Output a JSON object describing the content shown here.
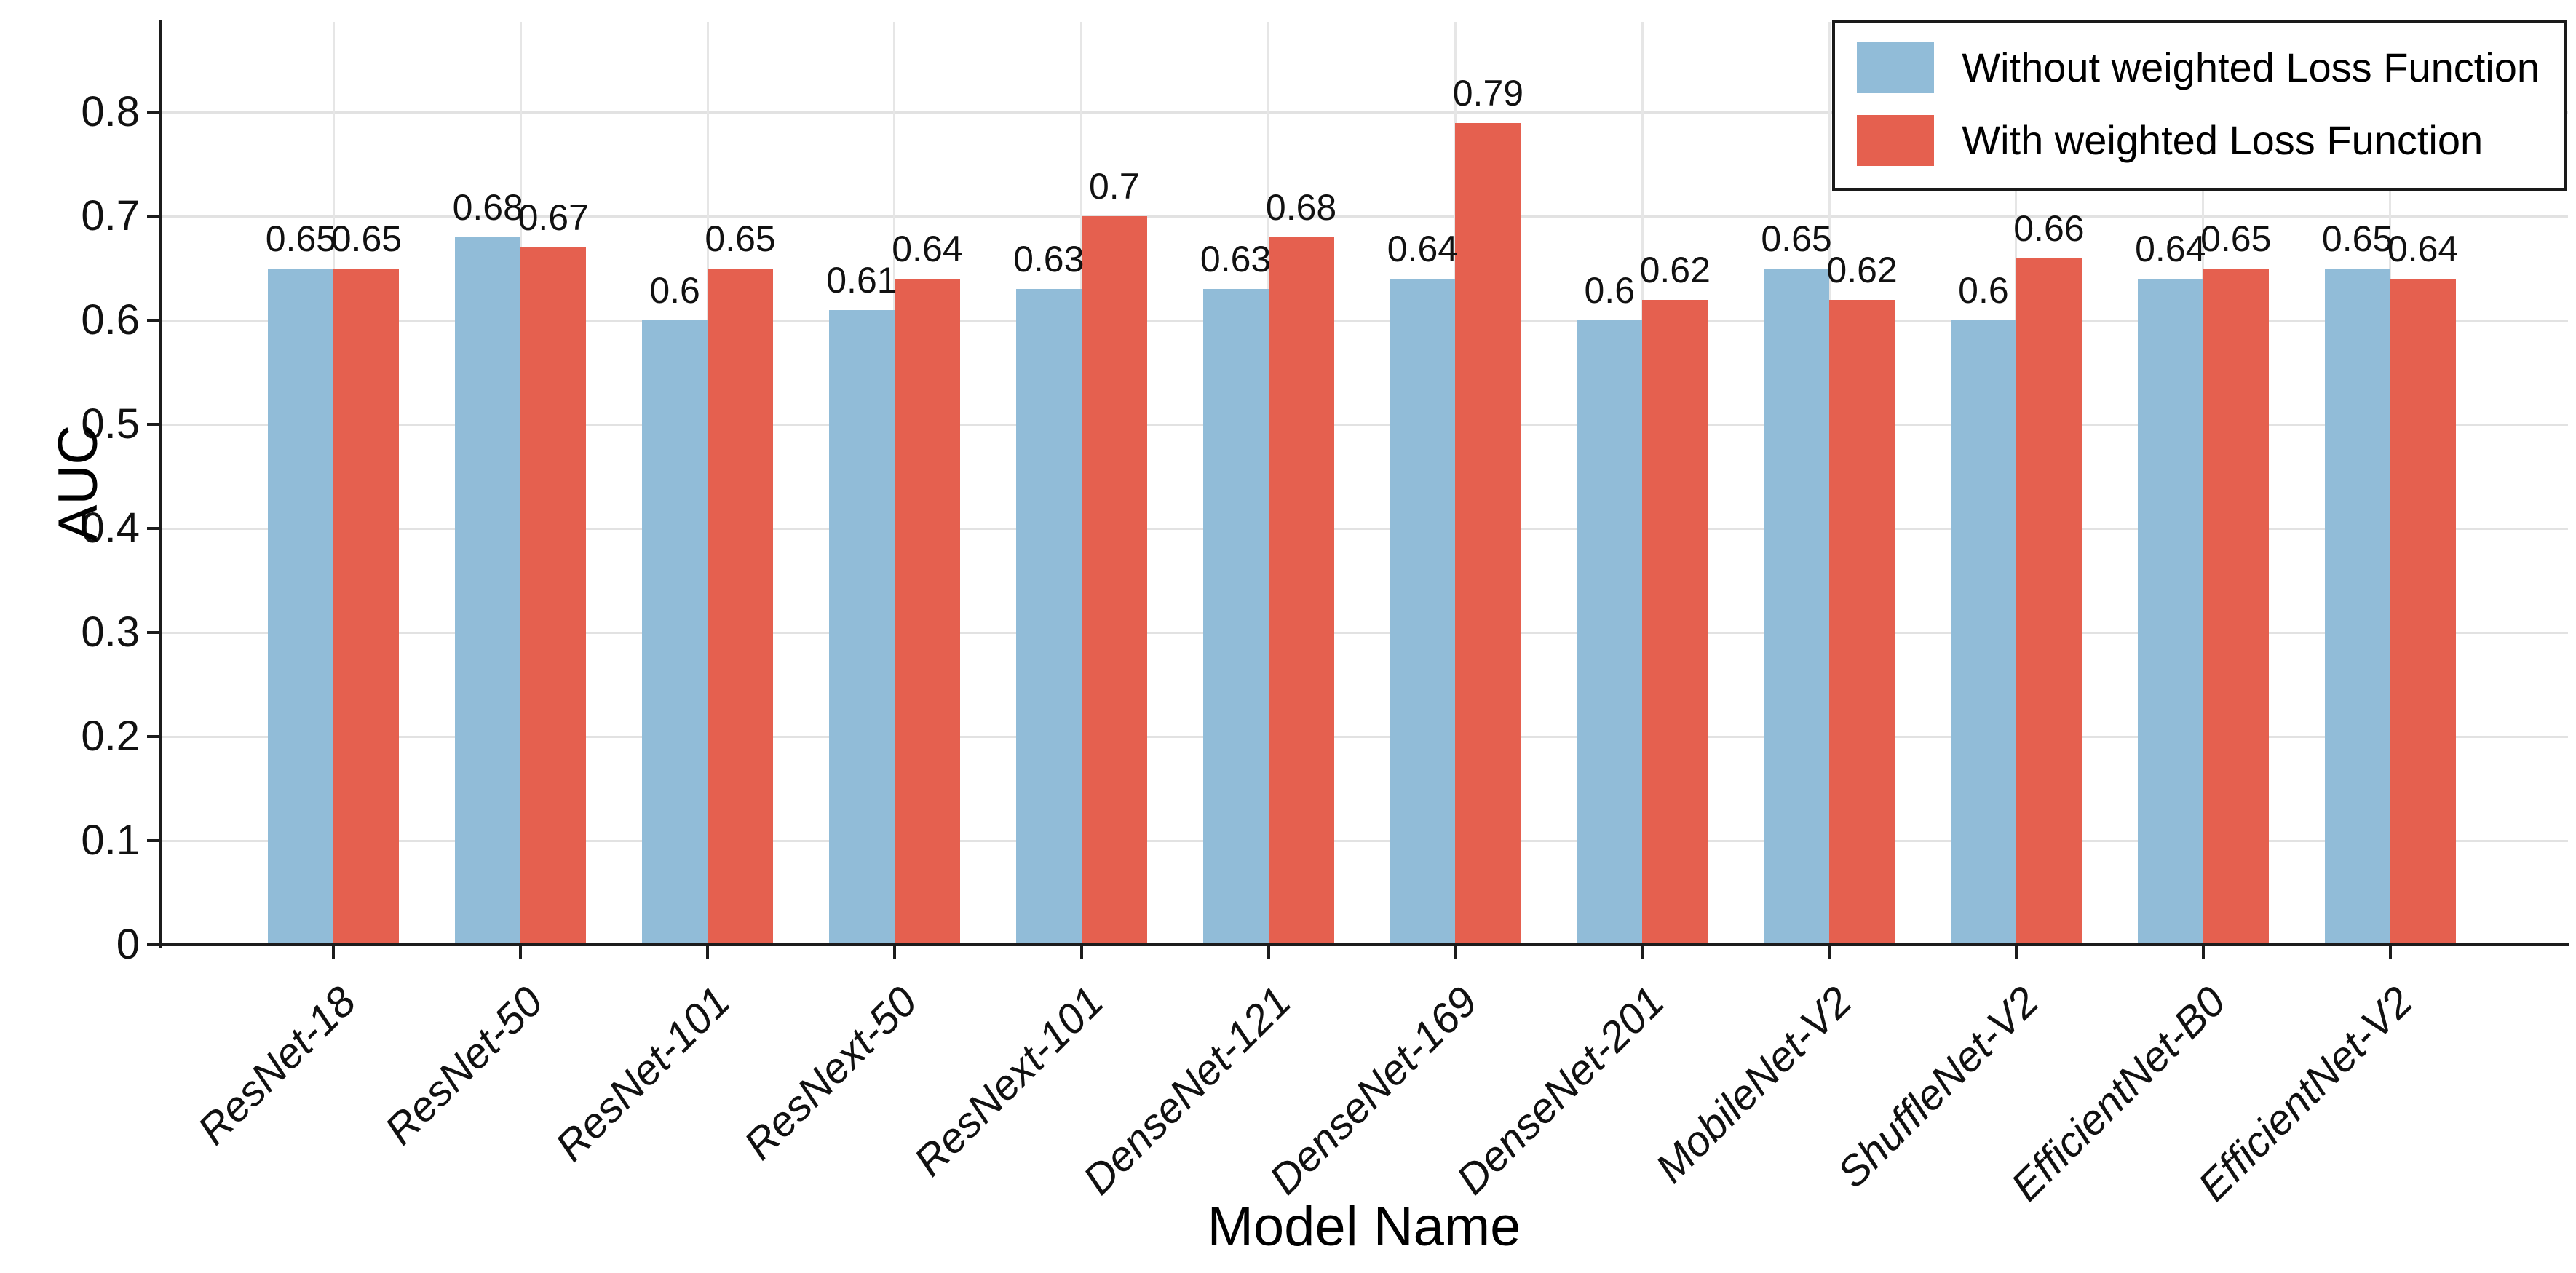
{
  "chart_data": {
    "type": "bar",
    "title": "",
    "xlabel": "Model Name",
    "ylabel": "AUC",
    "categories": [
      "ResNet-18",
      "ResNet-50",
      "ResNet-101",
      "ResNext-50",
      "ResNext-101",
      "DenseNet-121",
      "DenseNet-169",
      "DenseNet-201",
      "MobileNet-V2",
      "ShuffleNet-V2",
      "EfficientNet-B0",
      "EfficientNet-V2"
    ],
    "series": [
      {
        "name": "Without weighted Loss Function",
        "color": "#91BCD8",
        "values": [
          0.65,
          0.68,
          0.6,
          0.61,
          0.63,
          0.63,
          0.64,
          0.6,
          0.65,
          0.6,
          0.64,
          0.65
        ]
      },
      {
        "name": "With weighted Loss Function",
        "color": "#E5604F",
        "values": [
          0.65,
          0.67,
          0.65,
          0.64,
          0.7,
          0.68,
          0.79,
          0.62,
          0.62,
          0.66,
          0.65,
          0.64
        ]
      }
    ],
    "value_labels": [
      "0.65",
      "0.68",
      "0.6",
      "0.61",
      "0.63",
      "0.63",
      "0.64",
      "0.6",
      "0.65",
      "0.6",
      "0.64",
      "0.65",
      "0.65",
      "0.67",
      "0.65",
      "0.64",
      "0.7",
      "0.68",
      "0.79",
      "0.62",
      "0.62",
      "0.66",
      "0.65",
      "0.64"
    ],
    "ytick_values": [
      0,
      0.1,
      0.2,
      0.3,
      0.4,
      0.5,
      0.6,
      0.7,
      0.8
    ],
    "ytick_labels": [
      "0",
      "0.1",
      "0.2",
      "0.3",
      "0.4",
      "0.5",
      "0.6",
      "0.7",
      "0.8"
    ],
    "ylim": [
      0,
      0.887
    ],
    "grid": true,
    "legend_position": "upper right",
    "colors": {
      "grid": "#e2e2e2",
      "axis": "#1c1c1c",
      "text": "#111111"
    }
  }
}
